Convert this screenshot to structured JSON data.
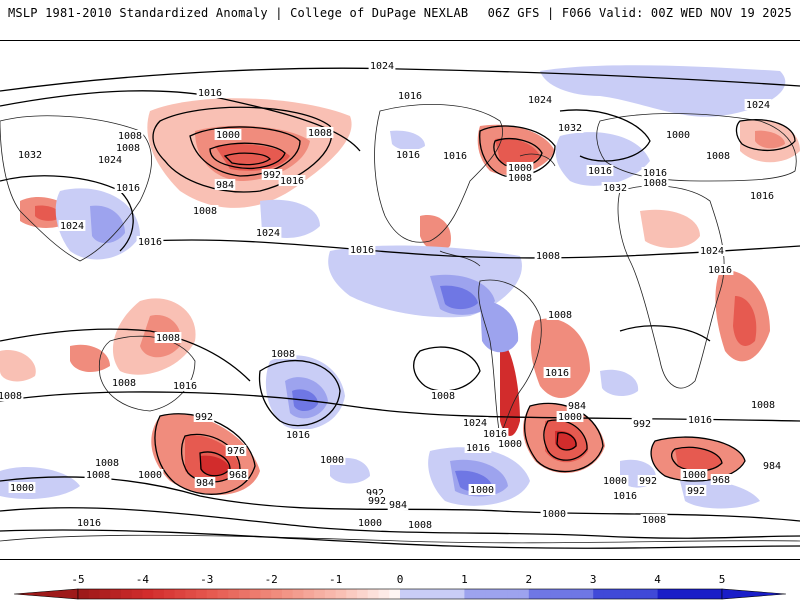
{
  "header": {
    "left_title": "MSLP 1981-2010 Standardized Anomaly | College of DuPage NEXLAB",
    "right_title": "06Z GFS | F066 Valid: 00Z WED NOV 19 2025"
  },
  "colorbar": {
    "ticks": [
      "-5",
      "-4",
      "-3",
      "-2",
      "-1",
      "0",
      "1",
      "2",
      "3",
      "4",
      "5"
    ],
    "colors": [
      "#9e1a1a",
      "#d22c2c",
      "#e65a50",
      "#f08c7d",
      "#f9c0b4",
      "#ffffff",
      "#c9cdf6",
      "#9da3ee",
      "#6f77e4",
      "#4049d8",
      "#1a1ec8"
    ]
  },
  "isobar_labels": [
    {
      "text": "1024",
      "region": "north-pacific"
    },
    {
      "text": "1016",
      "region": "aleutian"
    },
    {
      "text": "1008",
      "region": "aleutian"
    },
    {
      "text": "1000",
      "region": "aleutian-low"
    },
    {
      "text": "992",
      "region": "aleutian-low"
    },
    {
      "text": "984",
      "region": "aleutian-low"
    },
    {
      "text": "1016",
      "region": "aleutian"
    },
    {
      "text": "1008",
      "region": "north-pacific"
    },
    {
      "text": "1008",
      "region": "alaska"
    },
    {
      "text": "1008",
      "region": "siberia"
    },
    {
      "text": "1016",
      "region": "siberia"
    },
    {
      "text": "1032",
      "region": "mongolia"
    },
    {
      "text": "1024",
      "region": "china"
    },
    {
      "text": "1024",
      "region": "east-asia"
    },
    {
      "text": "1016",
      "region": "western-pacific"
    },
    {
      "text": "1024",
      "region": "central-pacific"
    },
    {
      "text": "1016",
      "region": "eastern-pacific"
    },
    {
      "text": "1016",
      "region": "hudson-bay"
    },
    {
      "text": "1024",
      "region": "greenland"
    },
    {
      "text": "1016",
      "region": "labrador"
    },
    {
      "text": "1016",
      "region": "north-atlantic"
    },
    {
      "text": "1032",
      "region": "north-atlantic"
    },
    {
      "text": "1008",
      "region": "newfoundland"
    },
    {
      "text": "1000",
      "region": "newfoundland-low"
    },
    {
      "text": "1008",
      "region": "newfoundland-low"
    },
    {
      "text": "1016",
      "region": "caribbean"
    },
    {
      "text": "1032",
      "region": "azores"
    },
    {
      "text": "1024",
      "region": "iberia"
    },
    {
      "text": "1000",
      "region": "scandinavia"
    },
    {
      "text": "1008",
      "region": "europe"
    },
    {
      "text": "1016",
      "region": "europe"
    },
    {
      "text": "1008",
      "region": "mediterranean"
    },
    {
      "text": "1016",
      "region": "mediterranean"
    },
    {
      "text": "1024",
      "region": "central-asia"
    },
    {
      "text": "1016",
      "region": "sahara"
    },
    {
      "text": "1008",
      "region": "east-africa"
    },
    {
      "text": "1016",
      "region": "south-atlantic"
    },
    {
      "text": "1008",
      "region": "brazil"
    },
    {
      "text": "1008",
      "region": "south-america"
    },
    {
      "text": "1008",
      "region": "indonesia"
    },
    {
      "text": "1016",
      "region": "australia"
    },
    {
      "text": "1008",
      "region": "south-indian-ocean"
    },
    {
      "text": "1008",
      "region": "tasman-sea"
    },
    {
      "text": "1016",
      "region": "south-pacific"
    },
    {
      "text": "1024",
      "region": "south-pacific-high"
    },
    {
      "text": "1016",
      "region": "south-pacific"
    },
    {
      "text": "1016",
      "region": "chile"
    },
    {
      "text": "1000",
      "region": "drake-passage"
    },
    {
      "text": "1008",
      "region": "south-pacific"
    },
    {
      "text": "1000",
      "region": "southern-ocean"
    },
    {
      "text": "992",
      "region": "southern-ocean"
    },
    {
      "text": "984",
      "region": "southern-ocean"
    },
    {
      "text": "1000",
      "region": "weddell-sea"
    },
    {
      "text": "984",
      "region": "south-atlantic-low"
    },
    {
      "text": "992",
      "region": "south-atlantic-low"
    },
    {
      "text": "1008",
      "region": "south-atlantic"
    },
    {
      "text": "1016",
      "region": "south-africa"
    },
    {
      "text": "1000",
      "region": "southern-indian"
    },
    {
      "text": "968",
      "region": "southern-indian-low"
    },
    {
      "text": "984",
      "region": "southern-indian"
    },
    {
      "text": "992",
      "region": "southern-indian"
    },
    {
      "text": "992",
      "region": "antarctic"
    },
    {
      "text": "1016",
      "region": "antarctic"
    },
    {
      "text": "1000",
      "region": "antarctic"
    },
    {
      "text": "1008",
      "region": "antarctic"
    },
    {
      "text": "1000",
      "region": "antarctic"
    },
    {
      "text": "992",
      "region": "new-zealand-low"
    },
    {
      "text": "976",
      "region": "new-zealand-low"
    },
    {
      "text": "968",
      "region": "new-zealand-low"
    },
    {
      "text": "984",
      "region": "new-zealand-low"
    },
    {
      "text": "1000",
      "region": "new-zealand"
    },
    {
      "text": "1008",
      "region": "new-zealand"
    },
    {
      "text": "1000",
      "region": "southern-ocean"
    },
    {
      "text": "992",
      "region": "southern-ocean"
    },
    {
      "text": "1016",
      "region": "southern-ocean"
    },
    {
      "text": "1000",
      "region": "southern-ocean"
    },
    {
      "text": "1008",
      "region": "southern-ocean"
    },
    {
      "text": "1000",
      "region": "south-indian-ocean"
    }
  ]
}
